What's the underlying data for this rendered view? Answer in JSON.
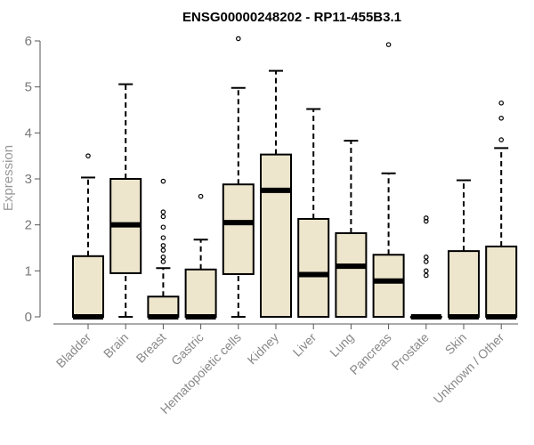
{
  "chart_data": {
    "type": "boxplot",
    "title": "ENSG00000248202 - RP11-455B3.1",
    "ylabel": "Expression",
    "xlabel": "",
    "ylim": [
      0,
      6
    ],
    "yticks": [
      0,
      1,
      2,
      3,
      4,
      5,
      6
    ],
    "box_fill": "#ede6cc",
    "categories": [
      "Bladder",
      "Brain",
      "Breast",
      "Gastric",
      "Hematopoietic cells",
      "Kidney",
      "Liver",
      "Lung",
      "Pancreas",
      "Prostate",
      "Skin",
      "Unknown / Other"
    ],
    "boxes": [
      {
        "category": "Bladder",
        "min": 0,
        "q1": 0,
        "median": 0,
        "q3": 1.32,
        "max": 3.03,
        "outliers": [
          3.5
        ]
      },
      {
        "category": "Brain",
        "min": 0,
        "q1": 0.95,
        "median": 2.0,
        "q3": 3.0,
        "max": 5.06,
        "outliers": []
      },
      {
        "category": "Breast",
        "min": 0,
        "q1": 0,
        "median": 0,
        "q3": 0.44,
        "max": 1.06,
        "outliers": [
          1.2,
          1.3,
          1.45,
          1.55,
          1.72,
          1.95,
          2.18,
          2.28,
          2.95
        ]
      },
      {
        "category": "Gastric",
        "min": 0,
        "q1": 0,
        "median": 0,
        "q3": 1.03,
        "max": 1.68,
        "outliers": [
          2.62
        ]
      },
      {
        "category": "Hematopoietic cells",
        "min": 0,
        "q1": 0.93,
        "median": 2.05,
        "q3": 2.88,
        "max": 4.98,
        "outliers": [
          6.05
        ]
      },
      {
        "category": "Kidney",
        "min": 0,
        "q1": 0,
        "median": 2.75,
        "q3": 3.53,
        "max": 5.35,
        "outliers": []
      },
      {
        "category": "Liver",
        "min": 0,
        "q1": 0,
        "median": 0.92,
        "q3": 2.13,
        "max": 4.52,
        "outliers": []
      },
      {
        "category": "Lung",
        "min": 0,
        "q1": 0,
        "median": 1.1,
        "q3": 1.82,
        "max": 3.83,
        "outliers": []
      },
      {
        "category": "Pancreas",
        "min": 0,
        "q1": 0,
        "median": 0.78,
        "q3": 1.35,
        "max": 3.12,
        "outliers": [
          5.92
        ]
      },
      {
        "category": "Prostate",
        "min": 0,
        "q1": 0,
        "median": 0,
        "q3": 0,
        "max": 0,
        "outliers": [
          0.9,
          1.0,
          1.2,
          1.3,
          2.08,
          2.15
        ]
      },
      {
        "category": "Skin",
        "min": 0,
        "q1": 0,
        "median": 0,
        "q3": 1.43,
        "max": 2.97,
        "outliers": []
      },
      {
        "category": "Unknown / Other",
        "min": 0,
        "q1": 0,
        "median": 0,
        "q3": 1.53,
        "max": 3.67,
        "outliers": [
          3.85,
          4.32,
          4.65
        ]
      }
    ],
    "grid": false,
    "legend": "none"
  }
}
